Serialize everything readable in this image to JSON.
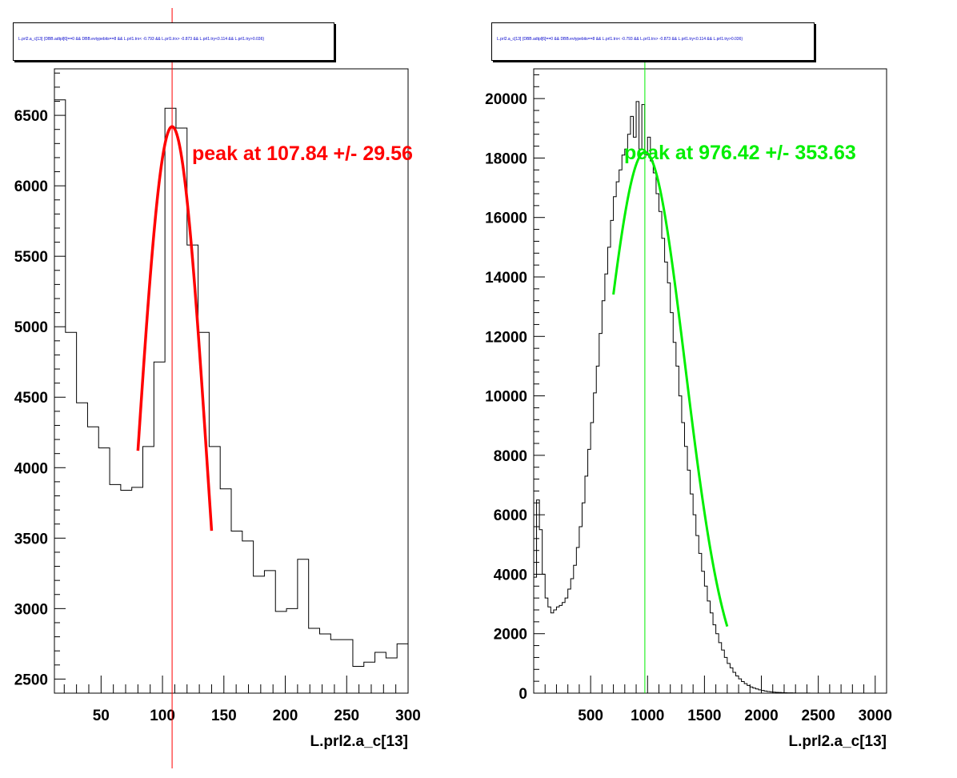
{
  "panels": [
    {
      "cut_title": "L.prl2.a_c[13] {DBB.adtpl[6]==0 && DBB.evtypebits==8 &&  L.prl1.trx< -0.793 && L.prl1.trx> -0.873 && L.prl1.try<0.114 && L.prl1.try>0.036}",
      "fit_label": "peak at 107.84 +/- 29.56",
      "fit_color": "#ff0000"
    },
    {
      "cut_title": "L.prl2.a_c[13] {DBB.adtpl[6]==0 && DBB.evtypebits==8 &&  L.prl1.trx< -0.793 && L.prl1.trx> -0.873 && L.prl1.try<0.114 && L.prl1.try>0.036}",
      "fit_label": "peak at 976.42 +/- 353.63",
      "fit_color": "#00ee00"
    }
  ],
  "chart_data": [
    {
      "type": "histogram",
      "xlabel": "L.prl2.a_c[13]",
      "xlim": [
        12,
        300
      ],
      "ylim": [
        2400,
        6830
      ],
      "x_ticks": [
        50,
        100,
        150,
        200,
        250,
        300
      ],
      "y_ticks": [
        2500,
        3000,
        3500,
        4000,
        4500,
        5000,
        5500,
        6000,
        6500
      ],
      "bin_edges": [
        12,
        21,
        30,
        39,
        48,
        57,
        66,
        75,
        84,
        93,
        102,
        111,
        120,
        129,
        138,
        147,
        156,
        165,
        174,
        183,
        192,
        201,
        210,
        219,
        228,
        237,
        246,
        255,
        264,
        273,
        282,
        291,
        300
      ],
      "counts": [
        6610,
        4960,
        4460,
        4290,
        4140,
        3880,
        3840,
        3860,
        4150,
        4750,
        6550,
        6410,
        5580,
        4960,
        4150,
        3850,
        3550,
        3480,
        3230,
        3270,
        2980,
        3000,
        3350,
        2860,
        2820,
        2780,
        2780,
        2590,
        2620,
        2690,
        2650,
        2750
      ],
      "fit": {
        "mean": 107.84,
        "sigma": 29.56,
        "peak": 6420,
        "range": [
          80,
          140
        ],
        "color": "#ff0000"
      },
      "marker_line_x": 107.84
    },
    {
      "type": "histogram",
      "xlabel": "L.prl2.a_c[13]",
      "xlim": [
        0,
        3100
      ],
      "ylim": [
        0,
        21000
      ],
      "x_ticks": [
        500,
        1000,
        1500,
        2000,
        2500,
        3000
      ],
      "y_ticks": [
        0,
        2000,
        4000,
        6000,
        8000,
        10000,
        12000,
        14000,
        16000,
        18000,
        20000
      ],
      "bin_edges": [
        0,
        25,
        50,
        75,
        100,
        125,
        150,
        175,
        200,
        225,
        250,
        275,
        300,
        325,
        350,
        375,
        400,
        425,
        450,
        475,
        500,
        525,
        550,
        575,
        600,
        625,
        650,
        675,
        700,
        725,
        750,
        775,
        800,
        825,
        850,
        875,
        900,
        925,
        950,
        975,
        1000,
        1025,
        1050,
        1075,
        1100,
        1125,
        1150,
        1175,
        1200,
        1225,
        1250,
        1275,
        1300,
        1325,
        1350,
        1375,
        1400,
        1425,
        1450,
        1475,
        1500,
        1525,
        1550,
        1575,
        1600,
        1625,
        1650,
        1675,
        1700,
        1725,
        1750,
        1775,
        1800,
        1825,
        1850,
        1875,
        1900,
        1925,
        1950,
        1975,
        2000,
        2025,
        2050,
        2075,
        2100,
        2125,
        2150,
        2175,
        2200,
        2225,
        2250,
        2275,
        2300,
        2325,
        2350,
        2375,
        2400,
        2425,
        2450,
        2475,
        2500,
        2525,
        2550,
        2575,
        2600,
        2625,
        2650,
        2675,
        2700,
        2725,
        2750,
        2775,
        2800,
        2825,
        2850,
        2875,
        2900,
        2925,
        2950,
        2975,
        3000,
        3025,
        3050,
        3075,
        3100
      ],
      "counts": [
        3900,
        6500,
        5500,
        4000,
        3200,
        2900,
        2700,
        2800,
        2900,
        2950,
        3050,
        3200,
        3500,
        3850,
        4300,
        4900,
        5600,
        6400,
        7300,
        8200,
        9100,
        10100,
        11000,
        12100,
        13200,
        14100,
        15000,
        15900,
        16700,
        17200,
        17600,
        18100,
        18300,
        18800,
        19400,
        18700,
        19900,
        18300,
        19800,
        18100,
        18700,
        17900,
        17500,
        16800,
        16200,
        15300,
        14500,
        13800,
        12800,
        11800,
        11000,
        10000,
        9100,
        8300,
        7500,
        6700,
        6000,
        5300,
        4700,
        4100,
        3600,
        3100,
        2700,
        2300,
        2000,
        1700,
        1450,
        1200,
        1000,
        850,
        700,
        580,
        480,
        390,
        320,
        260,
        210,
        170,
        140,
        110,
        90,
        70,
        55,
        45,
        35,
        28,
        22,
        18,
        14,
        11,
        9,
        7,
        5,
        4,
        3,
        2,
        2,
        1,
        1,
        1,
        0,
        0,
        0,
        0,
        0,
        0,
        0,
        0,
        0,
        0,
        0,
        0,
        0,
        0,
        0,
        0,
        0,
        0,
        0,
        0,
        0,
        0,
        0,
        0
      ],
      "fit": {
        "mean": 976.42,
        "sigma": 353.63,
        "peak": 18200,
        "range": [
          700,
          1700
        ],
        "color": "#00ee00"
      },
      "marker_line_x": 976.42
    }
  ]
}
